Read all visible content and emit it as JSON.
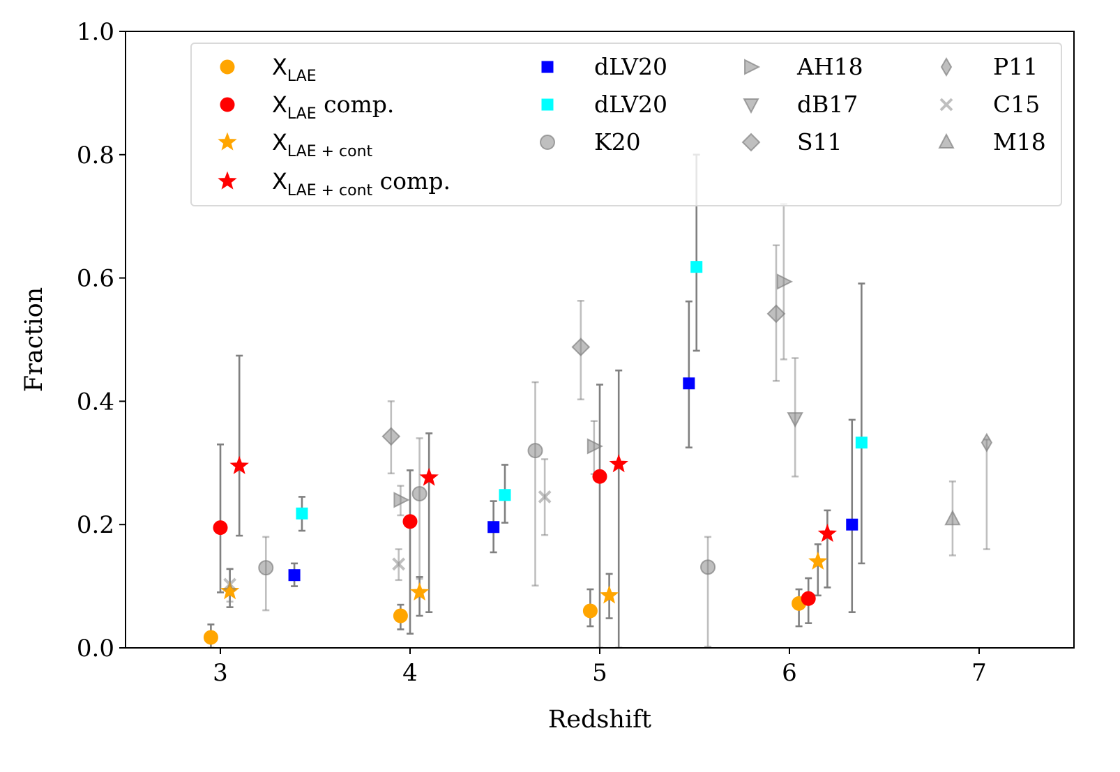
{
  "chart_data": {
    "type": "scatter",
    "title": "",
    "xlabel": "Redshift",
    "ylabel": "Fraction",
    "xlim": [
      2.5,
      7.5
    ],
    "ylim": [
      0.0,
      1.0
    ],
    "xticks": [
      "3",
      "4",
      "5",
      "6",
      "7"
    ],
    "xtick_values": [
      3,
      4,
      5,
      6,
      7
    ],
    "yticks": [
      "0.0",
      "0.2",
      "0.4",
      "0.6",
      "0.8",
      "1.0"
    ],
    "ytick_values": [
      0.0,
      0.2,
      0.4,
      0.6,
      0.8,
      1.0
    ],
    "legend_position": "top-right",
    "series": [
      {
        "id": "xlae",
        "legend": {
          "main": "X",
          "sub": "LAE",
          "suffix": ""
        },
        "marker": "circle",
        "color": "#ffa500",
        "err_color": "#808080",
        "alpha": 1,
        "points": [
          {
            "x": 2.95,
            "y": 0.017,
            "lo": 0.0,
            "hi": 0.038
          },
          {
            "x": 3.95,
            "y": 0.052,
            "lo": 0.03,
            "hi": 0.07
          },
          {
            "x": 4.95,
            "y": 0.06,
            "lo": 0.035,
            "hi": 0.095
          },
          {
            "x": 6.05,
            "y": 0.072,
            "lo": 0.035,
            "hi": 0.095
          }
        ]
      },
      {
        "id": "xlae-comp",
        "legend": {
          "main": "X",
          "sub": "LAE",
          "suffix": " comp."
        },
        "marker": "circle",
        "color": "#ff0000",
        "err_color": "#808080",
        "alpha": 1,
        "points": [
          {
            "x": 3.0,
            "y": 0.195,
            "lo": 0.09,
            "hi": 0.33
          },
          {
            "x": 4.0,
            "y": 0.205,
            "lo": 0.023,
            "hi": 0.288
          },
          {
            "x": 5.0,
            "y": 0.278,
            "lo": 0.0,
            "hi": 0.427
          },
          {
            "x": 6.1,
            "y": 0.08,
            "lo": 0.04,
            "hi": 0.113
          }
        ]
      },
      {
        "id": "xlae-cont",
        "legend": {
          "main": "X",
          "sub": "LAE + cont",
          "suffix": ""
        },
        "marker": "star",
        "color": "#ffa500",
        "err_color": "#808080",
        "alpha": 1,
        "points": [
          {
            "x": 3.05,
            "y": 0.092,
            "lo": 0.066,
            "hi": 0.128
          },
          {
            "x": 4.05,
            "y": 0.09,
            "lo": 0.052,
            "hi": 0.115
          },
          {
            "x": 5.05,
            "y": 0.085,
            "lo": 0.048,
            "hi": 0.12
          },
          {
            "x": 6.15,
            "y": 0.14,
            "lo": 0.085,
            "hi": 0.168
          }
        ]
      },
      {
        "id": "xlae-cont-comp",
        "legend": {
          "main": "X",
          "sub": "LAE + cont",
          "suffix": " comp."
        },
        "marker": "star",
        "color": "#ff0000",
        "err_color": "#808080",
        "alpha": 1,
        "points": [
          {
            "x": 3.1,
            "y": 0.295,
            "lo": 0.182,
            "hi": 0.474
          },
          {
            "x": 4.1,
            "y": 0.276,
            "lo": 0.058,
            "hi": 0.348
          },
          {
            "x": 5.1,
            "y": 0.298,
            "lo": 0.0,
            "hi": 0.45
          },
          {
            "x": 6.2,
            "y": 0.185,
            "lo": 0.098,
            "hi": 0.223
          }
        ]
      },
      {
        "id": "dlv20-blue",
        "legend": {
          "text": "dLV20"
        },
        "marker": "square",
        "color": "#0000ff",
        "err_color": "#808080",
        "alpha": 1,
        "points": [
          {
            "x": 3.39,
            "y": 0.118,
            "lo": 0.1,
            "hi": 0.137
          },
          {
            "x": 4.44,
            "y": 0.196,
            "lo": 0.155,
            "hi": 0.238
          },
          {
            "x": 5.47,
            "y": 0.429,
            "lo": 0.325,
            "hi": 0.562
          },
          {
            "x": 6.33,
            "y": 0.2,
            "lo": 0.058,
            "hi": 0.37
          }
        ]
      },
      {
        "id": "dlv20-cyan",
        "legend": {
          "text": "dLV20"
        },
        "marker": "square",
        "color": "#00ffff",
        "err_color": "#808080",
        "alpha": 1,
        "points": [
          {
            "x": 3.43,
            "y": 0.218,
            "lo": 0.19,
            "hi": 0.245
          },
          {
            "x": 4.5,
            "y": 0.248,
            "lo": 0.203,
            "hi": 0.297
          },
          {
            "x": 5.51,
            "y": 0.618,
            "lo": 0.482,
            "hi": 0.8
          },
          {
            "x": 6.38,
            "y": 0.333,
            "lo": 0.137,
            "hi": 0.591
          }
        ]
      },
      {
        "id": "k20",
        "legend": {
          "text": "K20"
        },
        "marker": "circle",
        "color": "#808080",
        "err_color": "#808080",
        "alpha": 0.5,
        "points": [
          {
            "x": 3.24,
            "y": 0.13,
            "lo": 0.061,
            "hi": 0.18
          },
          {
            "x": 4.05,
            "y": 0.25,
            "lo": 0.112,
            "hi": 0.34
          },
          {
            "x": 4.66,
            "y": 0.32,
            "lo": 0.101,
            "hi": 0.431
          },
          {
            "x": 5.57,
            "y": 0.131,
            "lo": 0.002,
            "hi": 0.18
          }
        ]
      },
      {
        "id": "ah18",
        "legend": {
          "text": "AH18"
        },
        "marker": "triangle-right",
        "color": "#808080",
        "err_color": "#808080",
        "alpha": 0.5,
        "points": [
          {
            "x": 3.95,
            "y": 0.24,
            "lo": 0.215,
            "hi": 0.263
          },
          {
            "x": 4.97,
            "y": 0.327,
            "lo": 0.282,
            "hi": 0.368
          },
          {
            "x": 5.97,
            "y": 0.594,
            "lo": 0.468,
            "hi": 0.72
          }
        ]
      },
      {
        "id": "db17",
        "legend": {
          "text": "dB17"
        },
        "marker": "triangle-down",
        "color": "#808080",
        "err_color": "#808080",
        "alpha": 0.5,
        "points": [
          {
            "x": 6.03,
            "y": 0.372,
            "lo": 0.278,
            "hi": 0.47
          }
        ]
      },
      {
        "id": "s11",
        "legend": {
          "text": "S11"
        },
        "marker": "diamond",
        "color": "#808080",
        "err_color": "#808080",
        "alpha": 0.5,
        "points": [
          {
            "x": 3.9,
            "y": 0.343,
            "lo": 0.283,
            "hi": 0.4
          },
          {
            "x": 4.9,
            "y": 0.488,
            "lo": 0.403,
            "hi": 0.563
          },
          {
            "x": 5.93,
            "y": 0.542,
            "lo": 0.433,
            "hi": 0.653
          }
        ]
      },
      {
        "id": "p11",
        "legend": {
          "text": "P11"
        },
        "marker": "thin-diamond",
        "color": "#808080",
        "err_color": "#808080",
        "alpha": 0.5,
        "points": [
          {
            "x": 7.04,
            "y": 0.333,
            "lo": 0.16,
            "hi": 0.338
          }
        ]
      },
      {
        "id": "c15",
        "legend": {
          "text": "C15"
        },
        "marker": "x",
        "color": "#808080",
        "err_color": "#808080",
        "alpha": 0.5,
        "points": [
          {
            "x": 3.05,
            "y": 0.103,
            "lo": 0.075,
            "hi": 0.128
          },
          {
            "x": 3.94,
            "y": 0.136,
            "lo": 0.11,
            "hi": 0.16
          },
          {
            "x": 4.71,
            "y": 0.245,
            "lo": 0.183,
            "hi": 0.306
          }
        ]
      },
      {
        "id": "m18",
        "legend": {
          "text": "M18"
        },
        "marker": "triangle-up",
        "color": "#808080",
        "err_color": "#808080",
        "alpha": 0.5,
        "points": [
          {
            "x": 6.86,
            "y": 0.209,
            "lo": 0.15,
            "hi": 0.27
          }
        ]
      }
    ],
    "legend_columns": [
      [
        "xlae",
        "xlae-comp",
        "xlae-cont",
        "xlae-cont-comp"
      ],
      [
        "dlv20-blue",
        "dlv20-cyan",
        "k20"
      ],
      [
        "ah18",
        "db17",
        "s11"
      ],
      [
        "p11",
        "c15",
        "m18"
      ]
    ]
  }
}
